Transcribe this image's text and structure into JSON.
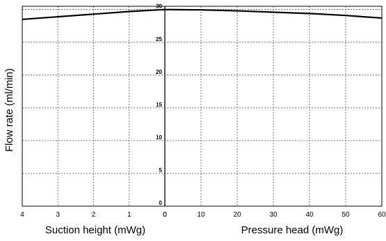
{
  "chart_data": {
    "type": "line",
    "ylabel": "Flow rate (ml/min)",
    "xlabel_left": "Suction height (mWg)",
    "xlabel_right": "Pressure head (mWg)",
    "y_ticks": [
      "0",
      "5",
      "10",
      "15",
      "20",
      "25",
      "30"
    ],
    "y_tick_values": [
      0,
      5,
      10,
      15,
      20,
      25,
      30
    ],
    "ylim": [
      0,
      30.5
    ],
    "suction_ticks": [
      "4",
      "3",
      "2",
      "1",
      "0"
    ],
    "suction_tick_values": [
      4,
      3,
      2,
      1,
      0
    ],
    "suction_range": [
      4,
      0
    ],
    "pressure_ticks": [
      "0",
      "10",
      "20",
      "30",
      "40",
      "50",
      "60"
    ],
    "pressure_tick_values": [
      0,
      10,
      20,
      30,
      40,
      50,
      60
    ],
    "pressure_range": [
      0,
      60
    ],
    "grid": true,
    "series": [
      {
        "suction_points": [
          {
            "x": 4,
            "y": 28.5
          },
          {
            "x": 3,
            "y": 28.9
          },
          {
            "x": 2,
            "y": 29.3
          },
          {
            "x": 1,
            "y": 29.7
          },
          {
            "x": 0,
            "y": 30.0
          }
        ],
        "pressure_points": [
          {
            "x": 0,
            "y": 30.0
          },
          {
            "x": 10,
            "y": 29.95
          },
          {
            "x": 20,
            "y": 29.8
          },
          {
            "x": 30,
            "y": 29.6
          },
          {
            "x": 40,
            "y": 29.4
          },
          {
            "x": 50,
            "y": 29.1
          },
          {
            "x": 60,
            "y": 28.7
          }
        ]
      }
    ]
  }
}
